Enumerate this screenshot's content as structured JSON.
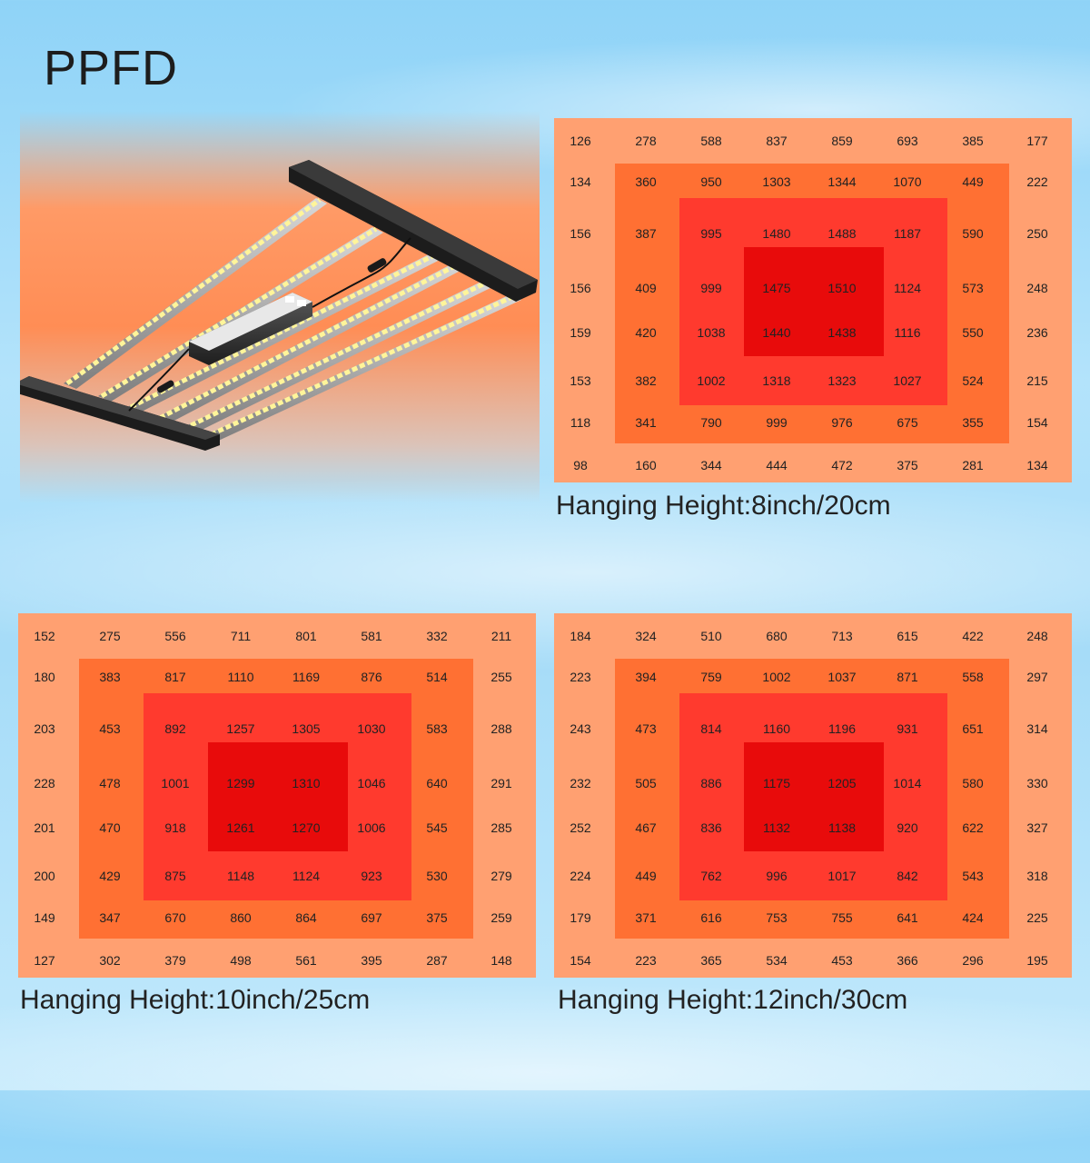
{
  "title": "PPFD",
  "colors": {
    "ring0": "#ffa071",
    "ring1": "#ff7033",
    "ring2": "#ff3a2e",
    "ring3": "#e80b0b"
  },
  "chart_data": [
    {
      "type": "heatmap",
      "caption": "Hanging Height:8inch/20cm",
      "rows": [
        [
          126,
          278,
          588,
          837,
          859,
          693,
          385,
          177
        ],
        [
          134,
          360,
          950,
          1303,
          1344,
          1070,
          449,
          222
        ],
        [
          156,
          387,
          995,
          1480,
          1488,
          1187,
          590,
          250
        ],
        [
          156,
          409,
          999,
          1475,
          1510,
          1124,
          573,
          248
        ],
        [
          159,
          420,
          1038,
          1440,
          1438,
          1116,
          550,
          236
        ],
        [
          153,
          382,
          1002,
          1318,
          1323,
          1027,
          524,
          215
        ],
        [
          118,
          341,
          790,
          999,
          976,
          675,
          355,
          154
        ],
        [
          98,
          160,
          344,
          444,
          472,
          375,
          281,
          134
        ]
      ]
    },
    {
      "type": "heatmap",
      "caption": "Hanging Height:10inch/25cm",
      "rows": [
        [
          152,
          275,
          556,
          711,
          801,
          581,
          332,
          211
        ],
        [
          180,
          383,
          817,
          1110,
          1169,
          876,
          514,
          255
        ],
        [
          203,
          453,
          892,
          1257,
          1305,
          1030,
          583,
          288
        ],
        [
          228,
          478,
          1001,
          1299,
          1310,
          1046,
          640,
          291
        ],
        [
          201,
          470,
          918,
          1261,
          1270,
          1006,
          545,
          285
        ],
        [
          200,
          429,
          875,
          1148,
          1124,
          923,
          530,
          279
        ],
        [
          149,
          347,
          670,
          860,
          864,
          697,
          375,
          259
        ],
        [
          127,
          302,
          379,
          498,
          561,
          395,
          287,
          148
        ]
      ]
    },
    {
      "type": "heatmap",
      "caption": "Hanging Height:12inch/30cm",
      "rows": [
        [
          184,
          324,
          510,
          680,
          713,
          615,
          422,
          248
        ],
        [
          223,
          394,
          759,
          1002,
          1037,
          871,
          558,
          297
        ],
        [
          243,
          473,
          814,
          1160,
          1196,
          931,
          651,
          314
        ],
        [
          232,
          505,
          886,
          1175,
          1205,
          1014,
          580,
          330
        ],
        [
          252,
          467,
          836,
          1132,
          1138,
          920,
          622,
          327
        ],
        [
          224,
          449,
          762,
          996,
          1017,
          842,
          543,
          318
        ],
        [
          179,
          371,
          616,
          753,
          755,
          641,
          424,
          225
        ],
        [
          154,
          223,
          365,
          534,
          453,
          366,
          296,
          195
        ]
      ]
    }
  ]
}
